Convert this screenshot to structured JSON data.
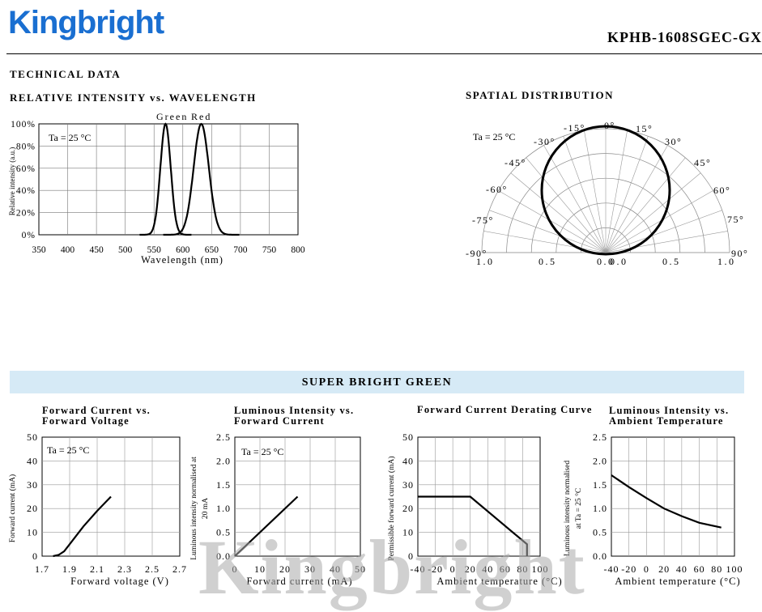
{
  "header": {
    "logo": "Kingbright",
    "part_number": "KPHB-1608SGEC-GX"
  },
  "section_title": "TECHNICAL DATA",
  "spectrum": {
    "title": "RELATIVE INTENSITY vs. WAVELENGTH",
    "ylabel": "Relative intensity (a.u.)",
    "xlabel": "Wavelength (nm)",
    "condition": "Ta = 25 °C",
    "peak_labels": [
      "Green",
      "Red"
    ],
    "y_ticks": [
      "100%",
      "80%",
      "60%",
      "40%",
      "20%",
      "0%"
    ],
    "x_ticks": [
      "350",
      "400",
      "450",
      "500",
      "550",
      "600",
      "650",
      "700",
      "750",
      "800"
    ]
  },
  "spatial": {
    "title": "SPATIAL DISTRIBUTION",
    "condition": "Ta = 25 °C",
    "angle_labels_left": [
      "-15°",
      "-30°",
      "-45°",
      "-60°",
      "-75°",
      "-90°"
    ],
    "angle_labels_right": [
      "0°",
      "15°",
      "30°",
      "45°",
      "60°",
      "75°",
      "90°"
    ],
    "base_labels": [
      "1.0",
      "0.5",
      "0.0",
      "0.0",
      "0.5",
      "1.0"
    ]
  },
  "band_title": "SUPER BRIGHT GREEN",
  "charts": {
    "c1": {
      "title_line1": "Forward Current vs.",
      "title_line2": "Forward Voltage",
      "ylabel": "Forward current (mA)",
      "xlabel": "Forward voltage (V)",
      "condition": "Ta = 25 °C",
      "y_ticks": [
        "50",
        "40",
        "30",
        "20",
        "10",
        "0"
      ],
      "x_ticks": [
        "1.7",
        "1.9",
        "2.1",
        "2.3",
        "2.5",
        "2.7"
      ]
    },
    "c2": {
      "title_line1": "Luminous Intensity vs.",
      "title_line2": "Forward Current",
      "ylabel_line1": "Luminous intensity normalised at",
      "ylabel_line2": "20 mA",
      "xlabel": "Forward current (mA)",
      "condition": "Ta = 25 °C",
      "y_ticks": [
        "2.5",
        "2.0",
        "1.5",
        "1.0",
        "0.5",
        "0.0"
      ],
      "x_ticks": [
        "0",
        "10",
        "20",
        "30",
        "40",
        "50"
      ]
    },
    "c3": {
      "title_line1": "Forward Current Derating Curve",
      "ylabel": "Permissible forward current (mA)",
      "xlabel": "Ambient temperature (°C)",
      "y_ticks": [
        "50",
        "40",
        "30",
        "20",
        "10",
        "0"
      ],
      "x_ticks": [
        "-40",
        "-20",
        "0",
        "20",
        "40",
        "60",
        "80",
        "100"
      ]
    },
    "c4": {
      "title_line1": "Luminous Intensity vs.",
      "title_line2": "Ambient Temperature",
      "ylabel_line1": "Luminous intensity normalised",
      "ylabel_line2": "at Ta = 25 °C",
      "xlabel": "Ambient temperature (°C)",
      "y_ticks": [
        "2.5",
        "2.0",
        "1.5",
        "1.0",
        "0.5",
        "0.0"
      ],
      "x_ticks": [
        "-40",
        "-20",
        "0",
        "20",
        "40",
        "60",
        "80",
        "100"
      ]
    }
  },
  "watermark": "Kingbright",
  "chart_data": [
    {
      "type": "line",
      "title": "RELATIVE INTENSITY vs. WAVELENGTH",
      "xlabel": "Wavelength (nm)",
      "ylabel": "Relative intensity (a.u.)",
      "xlim": [
        350,
        800
      ],
      "ylim": [
        0,
        100
      ],
      "series": [
        {
          "name": "Green",
          "peak": 570,
          "halfwidth": 15
        },
        {
          "name": "Red",
          "peak": 632,
          "halfwidth": 22
        }
      ]
    },
    {
      "type": "line",
      "title": "Forward Current vs. Forward Voltage",
      "xlabel": "Forward voltage (V)",
      "ylabel": "Forward current (mA)",
      "xlim": [
        1.7,
        2.7
      ],
      "ylim": [
        0,
        50
      ],
      "series": [
        {
          "x": [
            1.78,
            1.82,
            1.86,
            1.9,
            2.0,
            2.1,
            2.2
          ],
          "y": [
            0,
            0.5,
            2,
            5,
            12.5,
            19,
            25
          ]
        }
      ]
    },
    {
      "type": "line",
      "title": "Luminous Intensity vs. Forward Current",
      "xlabel": "Forward current (mA)",
      "ylabel": "Luminous intensity normalised at 20 mA",
      "xlim": [
        0,
        50
      ],
      "ylim": [
        0,
        2.5
      ],
      "series": [
        {
          "x": [
            0,
            25
          ],
          "y": [
            0,
            1.25
          ]
        }
      ]
    },
    {
      "type": "line",
      "title": "Forward Current Derating Curve",
      "xlabel": "Ambient temperature (°C)",
      "ylabel": "Permissible forward current (mA)",
      "xlim": [
        -40,
        100
      ],
      "ylim": [
        0,
        50
      ],
      "series": [
        {
          "x": [
            -40,
            20,
            85,
            85
          ],
          "y": [
            25,
            25,
            5,
            0
          ]
        }
      ]
    },
    {
      "type": "line",
      "title": "Luminous Intensity vs. Ambient Temperature",
      "xlabel": "Ambient temperature (°C)",
      "ylabel": "Luminous intensity normalised at Ta = 25 °C",
      "xlim": [
        -40,
        100
      ],
      "ylim": [
        0,
        2.5
      ],
      "series": [
        {
          "x": [
            -40,
            -20,
            0,
            20,
            40,
            60,
            85
          ],
          "y": [
            1.7,
            1.45,
            1.22,
            1.0,
            0.84,
            0.7,
            0.6
          ]
        }
      ]
    }
  ]
}
